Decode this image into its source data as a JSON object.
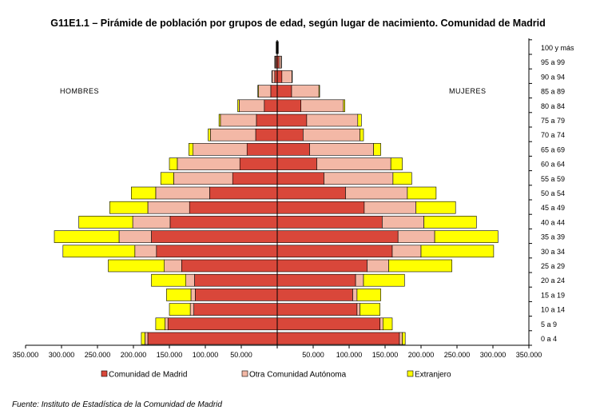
{
  "chart_data": {
    "type": "bar",
    "title": "G11E1.1 – Pirámide de población por grupos de edad, según lugar de nacimiento. Comunidad de Madrid",
    "left_label": "HOMBRES",
    "right_label": "MUJERES",
    "source": "Fuente: Instituto de Estadística de la Comunidad de Madrid",
    "categories": [
      "0 a 4",
      "5 a 9",
      "10 a 14",
      "15 a 19",
      "20 a 24",
      "25 a 29",
      "30 a 34",
      "35 a 39",
      "40 a 44",
      "45 a 49",
      "50 a 54",
      "55 a 59",
      "60 a 64",
      "65 a 69",
      "70 a 74",
      "75 a 79",
      "80 a 84",
      "85 a 89",
      "90 a 94",
      "95 a 99",
      "100 y más"
    ],
    "x_ticks": [
      350000,
      300000,
      250000,
      200000,
      150000,
      100000,
      50000,
      0,
      50000,
      100000,
      150000,
      200000,
      250000,
      300000,
      350000
    ],
    "x_tick_labels": [
      "350.000",
      "300.000",
      "250.000",
      "200.000",
      "150.000",
      "100.000",
      "50.000",
      "",
      "50.000",
      "100.000",
      "150.000",
      "200.000",
      "250.000",
      "300.000",
      "350.000"
    ],
    "xlim": [
      -350000,
      350000
    ],
    "colors": {
      "Comunidad de Madrid": "#d9473a",
      "Otra Comunidad Autónoma": "#f3b8a6",
      "Extranjero": "#ffff00"
    },
    "series": [
      {
        "name": "Comunidad de Madrid",
        "hombres": [
          180000,
          152000,
          116000,
          114000,
          115000,
          133000,
          168000,
          175000,
          149000,
          122000,
          94000,
          62000,
          52000,
          42000,
          30000,
          29000,
          18000,
          9000,
          3500,
          1500,
          500
        ],
        "mujeres": [
          170000,
          143000,
          111000,
          105000,
          109000,
          125000,
          160000,
          168000,
          146000,
          121000,
          95000,
          65000,
          55000,
          45000,
          36000,
          41000,
          33000,
          20000,
          6500,
          2500,
          500
        ]
      },
      {
        "name": "Otra Comunidad Autónoma",
        "hombres": [
          4000,
          4000,
          5000,
          6000,
          12000,
          24000,
          30000,
          45000,
          52000,
          58000,
          75000,
          82000,
          87000,
          75000,
          63000,
          50000,
          35000,
          17000,
          3500,
          1500,
          500
        ],
        "mujeres": [
          4000,
          4000,
          4000,
          6000,
          11000,
          30000,
          40000,
          51000,
          58000,
          72000,
          86000,
          96000,
          103000,
          89000,
          79000,
          71000,
          59000,
          38000,
          14000,
          3000,
          500
        ]
      },
      {
        "name": "Extranjero",
        "hombres": [
          5000,
          13000,
          29000,
          34000,
          48000,
          78000,
          100000,
          90000,
          75000,
          53000,
          34000,
          18000,
          11000,
          6000,
          3000,
          2000,
          2000,
          1000,
          500,
          500,
          500
        ],
        "mujeres": [
          4000,
          13000,
          28000,
          33000,
          57000,
          88000,
          101000,
          88000,
          73000,
          55000,
          40000,
          26000,
          16000,
          10000,
          5000,
          5000,
          2000,
          1000,
          500,
          500,
          500
        ]
      }
    ]
  }
}
